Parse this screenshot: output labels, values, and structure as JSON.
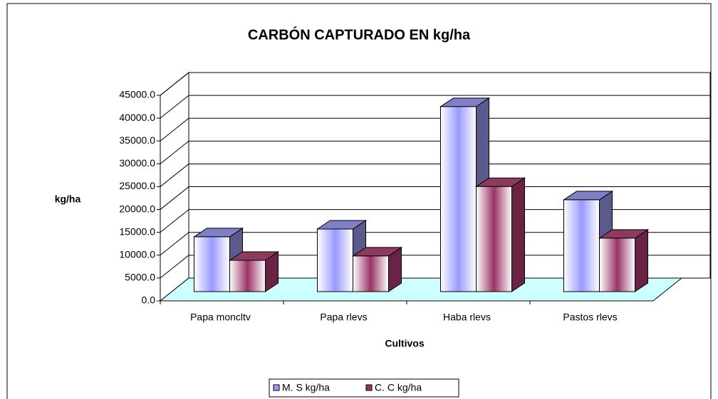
{
  "chart_data": {
    "type": "bar3d",
    "title": "CARBÓN CAPTURADO EN kg/ha",
    "x_label": "Cultivos",
    "y_label": "kg/ha",
    "categories": [
      "Papa moncltv",
      "Papa rlevs",
      "Haba rlevs",
      "Pastos rlevs"
    ],
    "series": [
      {
        "name": "M. S kg/ha",
        "color": "#9999ff",
        "values": [
          12000,
          13700,
          40500,
          20100
        ]
      },
      {
        "name": "C. C kg/ha",
        "color": "#993366",
        "values": [
          6850,
          7800,
          23000,
          11700
        ]
      }
    ],
    "ylim": [
      0,
      45000
    ],
    "yticks": [
      {
        "value": 0,
        "label": "0.0"
      },
      {
        "value": 5000,
        "label": "5000.0"
      },
      {
        "value": 10000,
        "label": "10000.0"
      },
      {
        "value": 15000,
        "label": "15000.0"
      },
      {
        "value": 20000,
        "label": "20000.0"
      },
      {
        "value": 25000,
        "label": "25000.0"
      },
      {
        "value": 30000,
        "label": "30000.0"
      },
      {
        "value": 35000,
        "label": "35000.0"
      },
      {
        "value": 40000,
        "label": "40000.0"
      },
      {
        "value": 45000,
        "label": "45000.0"
      }
    ],
    "grid": true,
    "legend": "bottom"
  }
}
